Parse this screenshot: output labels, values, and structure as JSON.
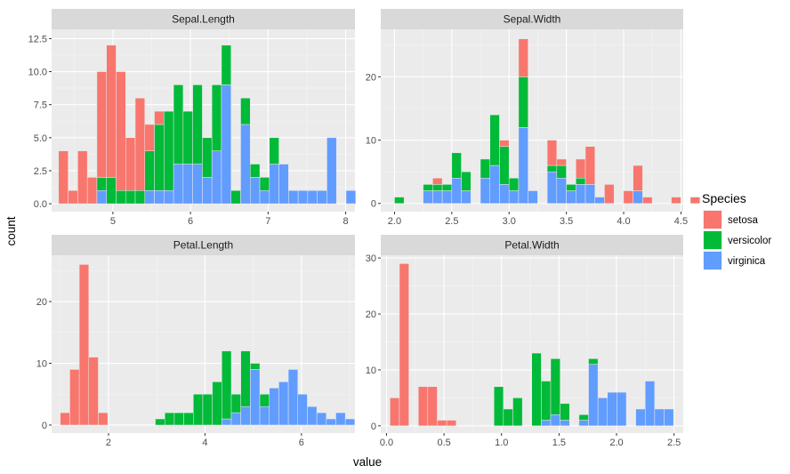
{
  "chart_data": {
    "type": "histogram",
    "stacked": true,
    "xlabel": "value",
    "ylabel": "count",
    "legend": {
      "title": "Species",
      "placement": "right",
      "entries": [
        {
          "name": "setosa",
          "color": "#F8766D"
        },
        {
          "name": "versicolor",
          "color": "#00BA38"
        },
        {
          "name": "virginica",
          "color": "#619CFF"
        }
      ]
    },
    "panel_background": "#EBEBEB",
    "strip_background": "#D9D9D9",
    "grid": true,
    "series_order": [
      "setosa",
      "versicolor",
      "virginica"
    ],
    "panels": [
      {
        "title": "Sepal.Length",
        "xlim": [
          4.21,
          8.12
        ],
        "ylim": [
          -0.6,
          13.2
        ],
        "xticks": [
          5,
          6,
          7,
          8
        ],
        "xtick_labels": [
          "5",
          "6",
          "7",
          "8"
        ],
        "yticks": [
          0,
          2.5,
          5,
          7.5,
          10,
          12.5
        ],
        "ytick_labels": [
          "0.0",
          "2.5",
          "5.0",
          "7.5",
          "10.0",
          "12.5"
        ],
        "bin_start": 4.3,
        "bin_width": 0.1235,
        "bins": [
          [
            4,
            0,
            0
          ],
          [
            1,
            0,
            0
          ],
          [
            4,
            0,
            0
          ],
          [
            2,
            0,
            0
          ],
          [
            8,
            1,
            1
          ],
          [
            10,
            2,
            0
          ],
          [
            9,
            1,
            0
          ],
          [
            4,
            1,
            0
          ],
          [
            7,
            1,
            0
          ],
          [
            2,
            3,
            1
          ],
          [
            1,
            5,
            1
          ],
          [
            0,
            6,
            1
          ],
          [
            0,
            6,
            3
          ],
          [
            0,
            4,
            3
          ],
          [
            0,
            6,
            3
          ],
          [
            0,
            3,
            2
          ],
          [
            0,
            5,
            4
          ],
          [
            0,
            3,
            9
          ],
          [
            0,
            1,
            0
          ],
          [
            0,
            2,
            6
          ],
          [
            0,
            1,
            2
          ],
          [
            0,
            1,
            1
          ],
          [
            0,
            2,
            3
          ],
          [
            0,
            0,
            3
          ],
          [
            0,
            0,
            1
          ],
          [
            0,
            0,
            1
          ],
          [
            0,
            0,
            1
          ],
          [
            0,
            0,
            1
          ],
          [
            0,
            0,
            5
          ],
          [
            0,
            0,
            0
          ],
          [
            0,
            0,
            1
          ]
        ]
      },
      {
        "title": "Sepal.Width",
        "xlim": [
          1.88,
          4.52
        ],
        "ylim": [
          -1.3,
          27.5
        ],
        "xticks": [
          2.0,
          2.5,
          3.0,
          3.5,
          4.0,
          4.5
        ],
        "xtick_labels": [
          "2.0",
          "2.5",
          "3.0",
          "3.5",
          "4.0",
          "4.5"
        ],
        "yticks": [
          0,
          10,
          20
        ],
        "ytick_labels": [
          "0",
          "10",
          "20"
        ],
        "bin_start": 2.0,
        "bin_width": 0.0833,
        "bins": [
          [
            0,
            1,
            0
          ],
          [
            0,
            0,
            0
          ],
          [
            0,
            0,
            0
          ],
          [
            0,
            1,
            2
          ],
          [
            1,
            1,
            2
          ],
          [
            0,
            1,
            2
          ],
          [
            0,
            4,
            4
          ],
          [
            0,
            3,
            2
          ],
          [
            0,
            0,
            0
          ],
          [
            0,
            3,
            4
          ],
          [
            0,
            8,
            6
          ],
          [
            1,
            6,
            3
          ],
          [
            0,
            2,
            2
          ],
          [
            6,
            8,
            12
          ],
          [
            0,
            0,
            2
          ],
          [
            0,
            0,
            0
          ],
          [
            4,
            1,
            5
          ],
          [
            1,
            2,
            4
          ],
          [
            0,
            1,
            2
          ],
          [
            3,
            1,
            3
          ],
          [
            6,
            0,
            3
          ],
          [
            0,
            0,
            1
          ],
          [
            3,
            0,
            0
          ],
          [
            0,
            0,
            0
          ],
          [
            2,
            0,
            0
          ],
          [
            4,
            0,
            2
          ],
          [
            1,
            0,
            0
          ],
          [
            0,
            0,
            0
          ],
          [
            0,
            0,
            0
          ],
          [
            1,
            0,
            0
          ],
          [
            0,
            0,
            0
          ],
          [
            1,
            0,
            0
          ]
        ]
      },
      {
        "title": "Petal.Length",
        "xlim": [
          0.82,
          7.11
        ],
        "ylim": [
          -1.3,
          27.5
        ],
        "xticks": [
          2,
          4,
          6
        ],
        "xtick_labels": [
          "2",
          "4",
          "6"
        ],
        "yticks": [
          0,
          10,
          20
        ],
        "ytick_labels": [
          "0",
          "10",
          "20"
        ],
        "bin_start": 1.0,
        "bin_width": 0.197,
        "bins": [
          [
            2,
            0,
            0
          ],
          [
            9,
            0,
            0
          ],
          [
            26,
            0,
            0
          ],
          [
            11,
            0,
            0
          ],
          [
            2,
            0,
            0
          ],
          [
            0,
            0,
            0
          ],
          [
            0,
            0,
            0
          ],
          [
            0,
            0,
            0
          ],
          [
            0,
            0,
            0
          ],
          [
            0,
            0,
            0
          ],
          [
            0,
            1,
            0
          ],
          [
            0,
            2,
            0
          ],
          [
            0,
            2,
            0
          ],
          [
            0,
            2,
            0
          ],
          [
            0,
            5,
            0
          ],
          [
            0,
            5,
            0
          ],
          [
            0,
            7,
            0
          ],
          [
            0,
            11,
            1
          ],
          [
            0,
            3,
            2
          ],
          [
            0,
            9,
            3
          ],
          [
            0,
            1,
            9
          ],
          [
            0,
            2,
            3
          ],
          [
            0,
            0,
            6
          ],
          [
            0,
            0,
            7
          ],
          [
            0,
            0,
            9
          ],
          [
            0,
            0,
            5
          ],
          [
            0,
            0,
            3
          ],
          [
            0,
            0,
            2
          ],
          [
            0,
            0,
            1
          ],
          [
            0,
            0,
            2
          ],
          [
            0,
            0,
            1
          ]
        ]
      },
      {
        "title": "Petal.Width",
        "xlim": [
          -0.05,
          2.58
        ],
        "ylim": [
          -1.3,
          30.5
        ],
        "xticks": [
          0.0,
          0.5,
          1.0,
          1.5,
          2.0,
          2.5
        ],
        "xtick_labels": [
          "0.0",
          "0.5",
          "1.0",
          "1.5",
          "2.0",
          "2.5"
        ],
        "yticks": [
          0,
          10,
          20,
          30
        ],
        "ytick_labels": [
          "0",
          "10",
          "20",
          "30"
        ],
        "bin_start": 0.03,
        "bin_width": 0.0822,
        "bins": [
          [
            5,
            0,
            0
          ],
          [
            29,
            0,
            0
          ],
          [
            0,
            0,
            0
          ],
          [
            7,
            0,
            0
          ],
          [
            7,
            0,
            0
          ],
          [
            1,
            0,
            0
          ],
          [
            1,
            0,
            0
          ],
          [
            0,
            0,
            0
          ],
          [
            0,
            0,
            0
          ],
          [
            0,
            0,
            0
          ],
          [
            0,
            0,
            0
          ],
          [
            0,
            7,
            0
          ],
          [
            0,
            3,
            0
          ],
          [
            0,
            5,
            0
          ],
          [
            0,
            0,
            0
          ],
          [
            0,
            13,
            0
          ],
          [
            0,
            7,
            1
          ],
          [
            0,
            10,
            2
          ],
          [
            0,
            3,
            1
          ],
          [
            0,
            0,
            0
          ],
          [
            0,
            1,
            1
          ],
          [
            0,
            1,
            11
          ],
          [
            0,
            0,
            5
          ],
          [
            0,
            0,
            6
          ],
          [
            0,
            0,
            6
          ],
          [
            0,
            0,
            0
          ],
          [
            0,
            0,
            3
          ],
          [
            0,
            0,
            8
          ],
          [
            0,
            0,
            3
          ],
          [
            0,
            0,
            3
          ]
        ]
      }
    ]
  }
}
